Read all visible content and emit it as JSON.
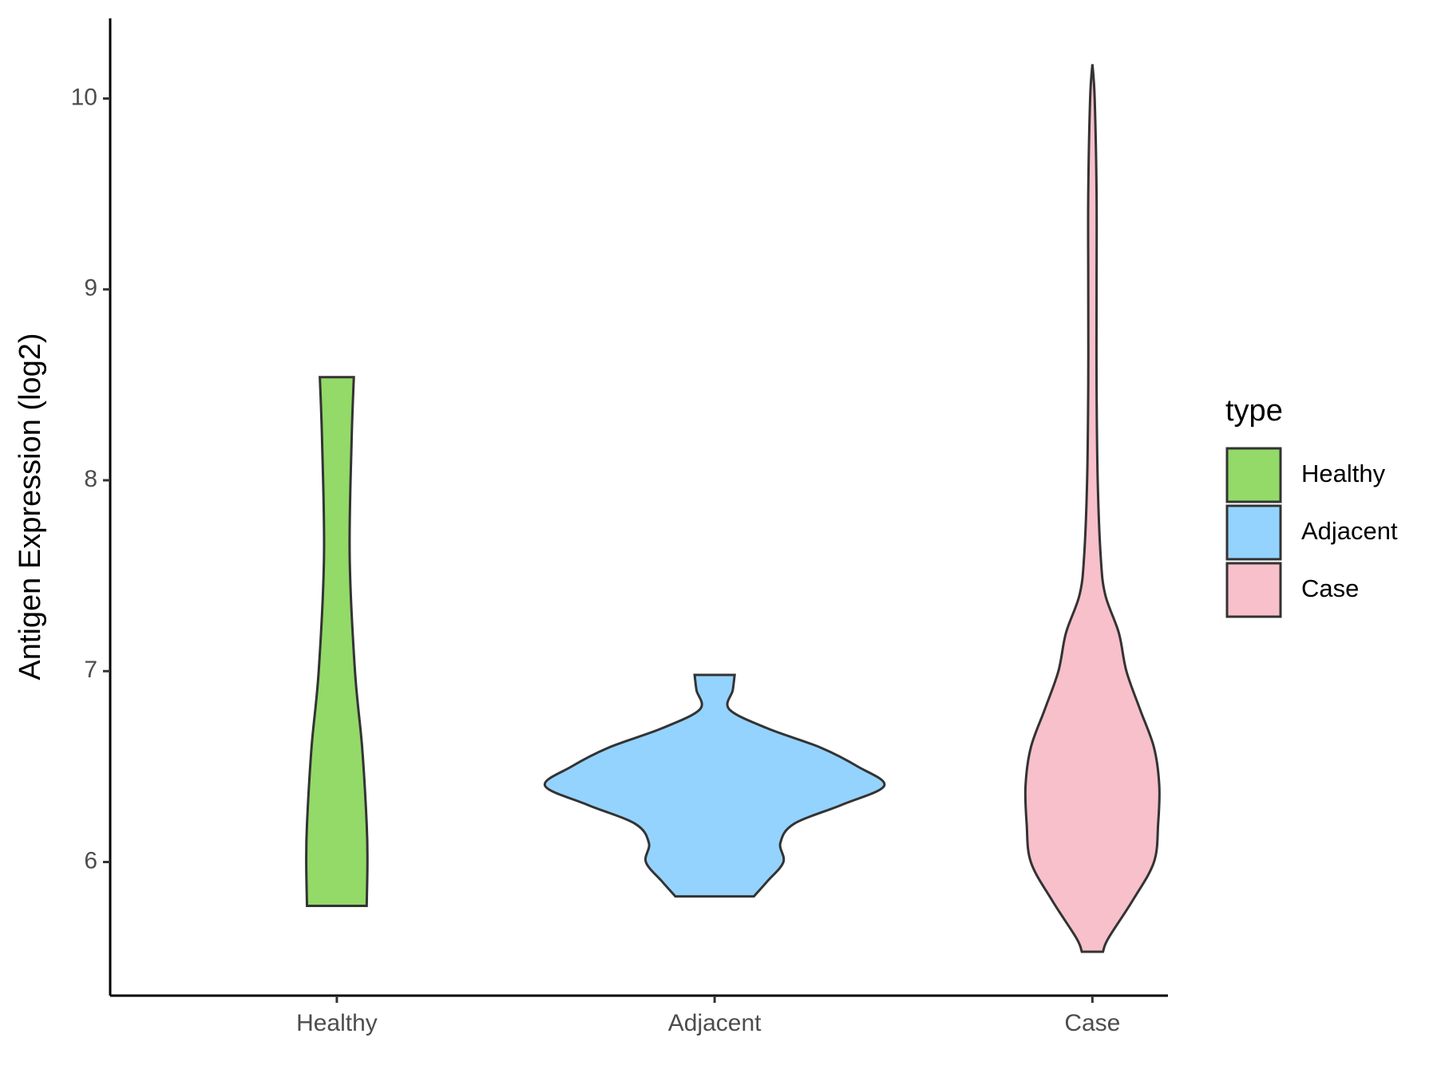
{
  "chart_data": {
    "type": "violin",
    "y_label": "Antigen Expression (log2)",
    "legend_title": "type",
    "legend_position": "right",
    "categories": [
      "Healthy",
      "Adjacent",
      "Case"
    ],
    "ylim": [
      5.3,
      10.42
    ],
    "yticks": [
      6,
      7,
      8,
      9,
      10
    ],
    "series": [
      {
        "name": "Healthy",
        "color": "#93da69",
        "y": [
          8.54,
          8.2,
          7.6,
          7.0,
          6.6,
          6.2,
          6.0,
          5.77
        ],
        "half_width": [
          0.045,
          0.039,
          0.034,
          0.048,
          0.067,
          0.079,
          0.081,
          0.079
        ]
      },
      {
        "name": "Adjacent",
        "color": "#94d3fe",
        "y": [
          6.98,
          6.9,
          6.8,
          6.7,
          6.6,
          6.5,
          6.4,
          6.3,
          6.2,
          6.1,
          6.0,
          5.9,
          5.82
        ],
        "half_width": [
          0.053,
          0.048,
          0.039,
          0.14,
          0.28,
          0.379,
          0.449,
          0.337,
          0.21,
          0.174,
          0.182,
          0.14,
          0.104
        ]
      },
      {
        "name": "Case",
        "color": "#f7c0cb",
        "y": [
          10.18,
          10.0,
          9.5,
          9.0,
          8.5,
          8.0,
          7.6,
          7.4,
          7.2,
          7.0,
          6.8,
          6.6,
          6.4,
          6.2,
          6.0,
          5.8,
          5.6,
          5.53
        ],
        "half_width": [
          0.0,
          0.006,
          0.011,
          0.011,
          0.011,
          0.014,
          0.022,
          0.034,
          0.07,
          0.09,
          0.126,
          0.163,
          0.177,
          0.174,
          0.163,
          0.107,
          0.042,
          0.028
        ]
      }
    ]
  }
}
